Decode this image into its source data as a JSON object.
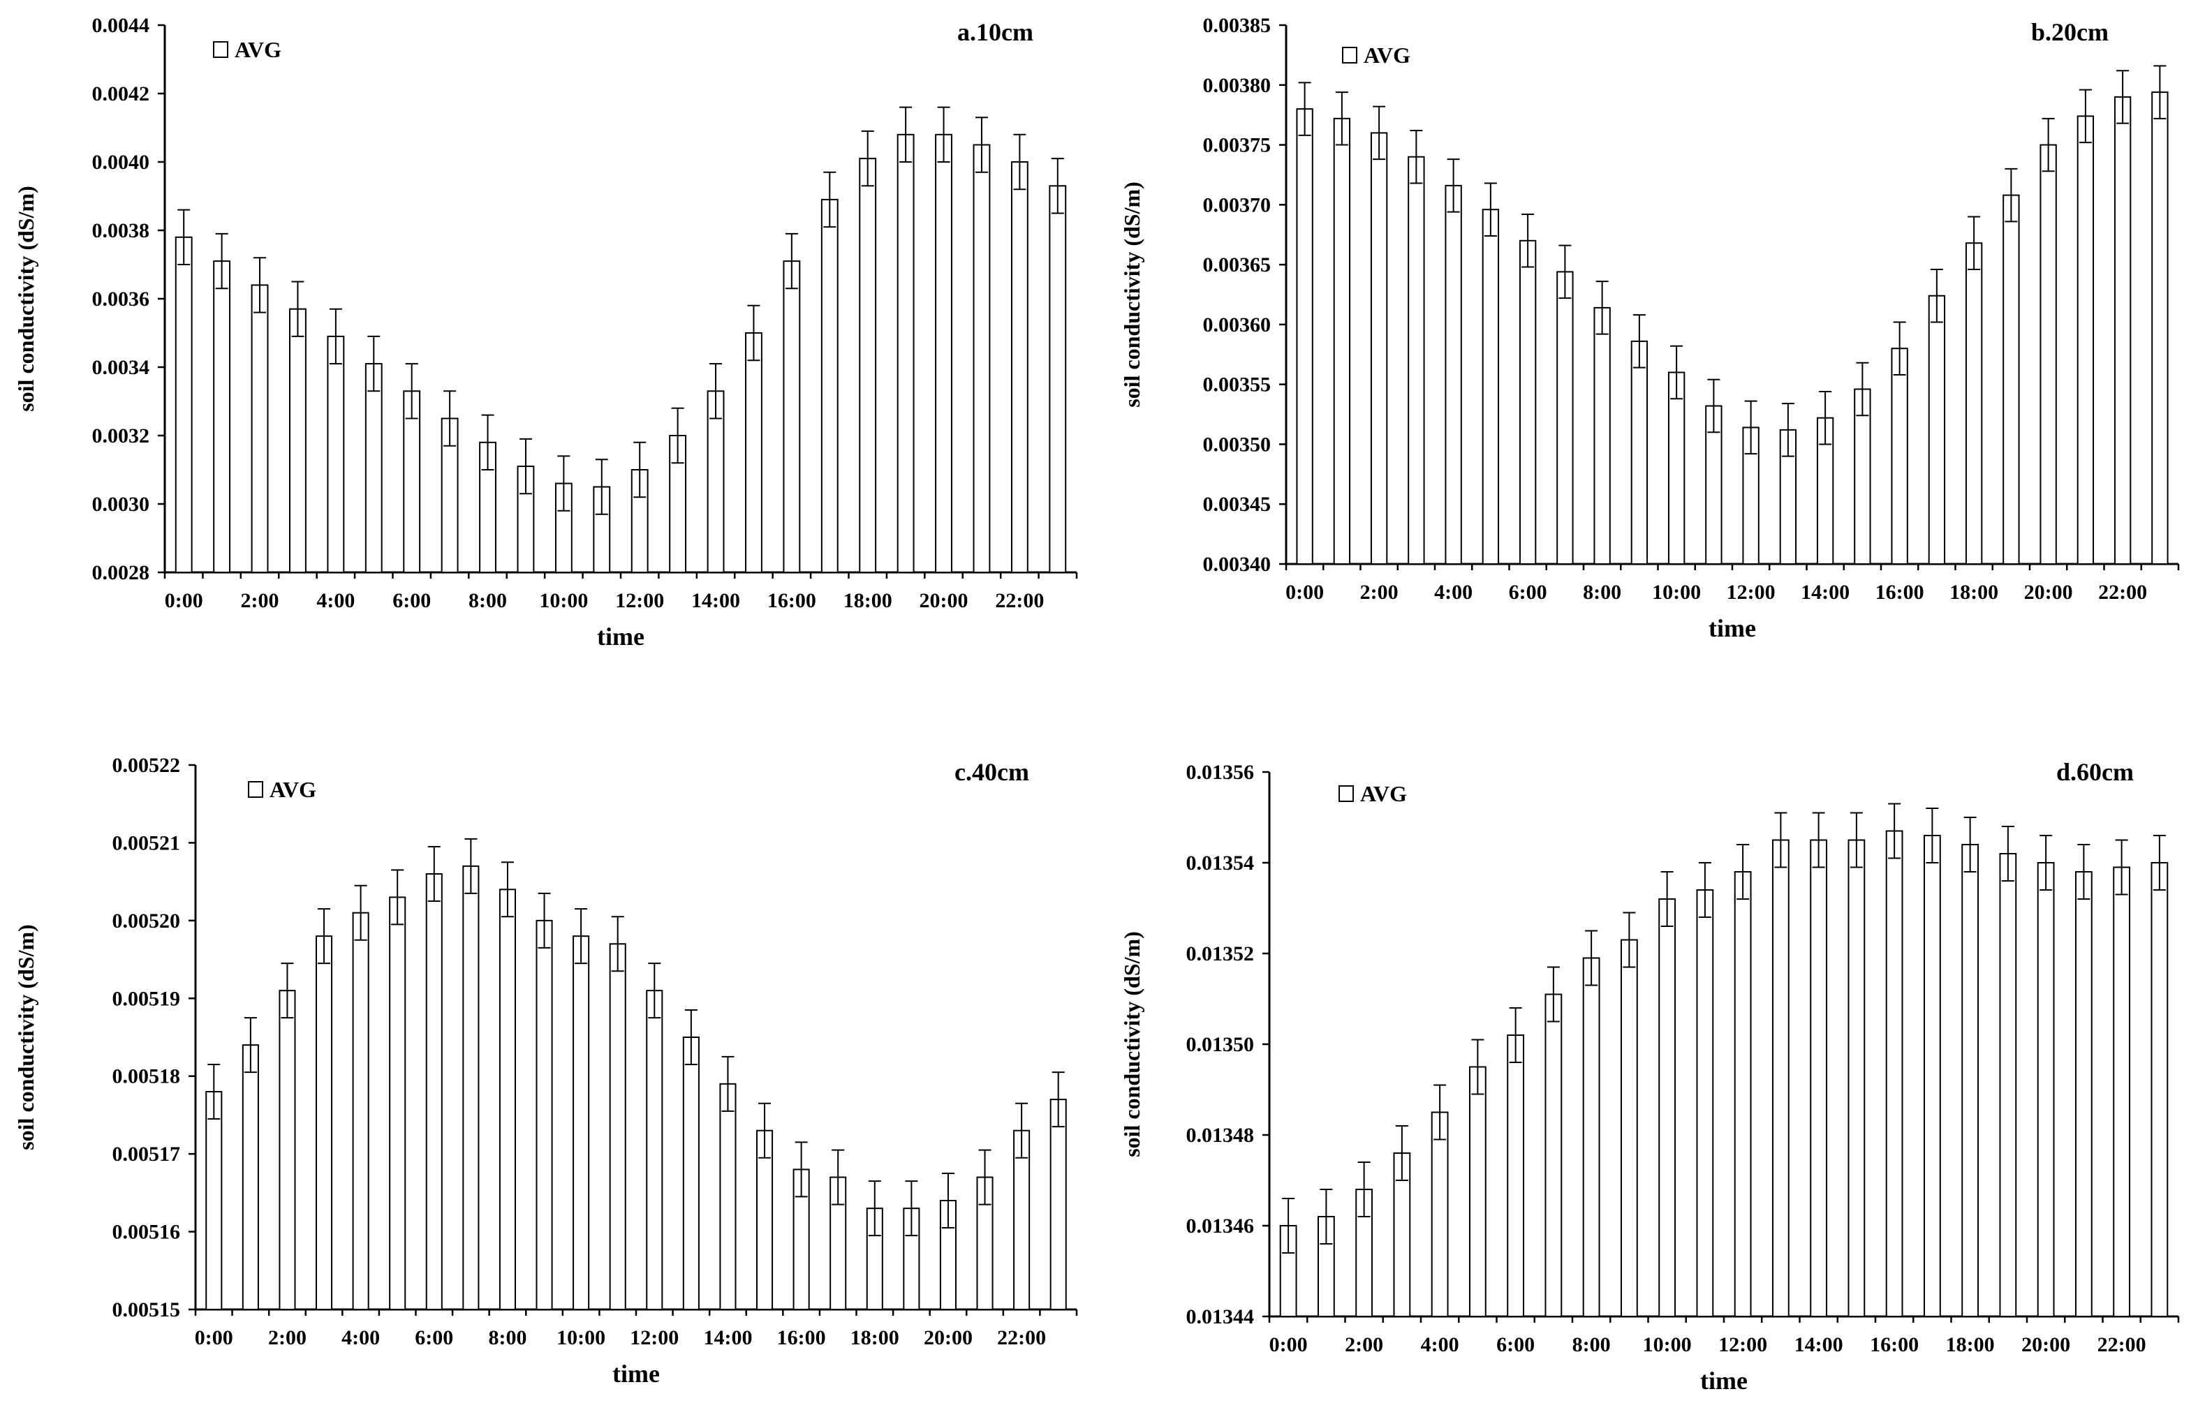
{
  "chart_data": [
    {
      "type": "bar",
      "title": "a.10cm",
      "xlabel": "time",
      "ylabel": "soil conductivity (dS/m)",
      "legend": [
        "AVG"
      ],
      "legend_position": "top-left",
      "ylim": [
        0.0028,
        0.0044
      ],
      "ytick_values": [
        0.0028,
        0.003,
        0.0032,
        0.0034,
        0.0036,
        0.0038,
        0.004,
        0.0042,
        0.0044
      ],
      "ytick_labels": [
        "0.0028",
        "0.0030",
        "0.0032",
        "0.0034",
        "0.0036",
        "0.0038",
        "0.0040",
        "0.0042",
        "0.0044"
      ],
      "xtick_labels": [
        "0:00",
        "2:00",
        "4:00",
        "6:00",
        "8:00",
        "10:00",
        "12:00",
        "14:00",
        "16:00",
        "18:00",
        "20:00",
        "22:00"
      ],
      "xtick_every": 2,
      "series": [
        {
          "name": "AVG",
          "values": [
            0.00378,
            0.00371,
            0.00364,
            0.00357,
            0.00349,
            0.00341,
            0.00333,
            0.00325,
            0.00318,
            0.00311,
            0.00306,
            0.00305,
            0.0031,
            0.0032,
            0.00333,
            0.0035,
            0.00371,
            0.00389,
            0.00401,
            0.00408,
            0.00408,
            0.00405,
            0.004,
            0.00393
          ],
          "errors": [
            8e-05,
            8e-05,
            8e-05,
            8e-05,
            8e-05,
            8e-05,
            8e-05,
            8e-05,
            8e-05,
            8e-05,
            8e-05,
            8e-05,
            8e-05,
            8e-05,
            8e-05,
            8e-05,
            8e-05,
            8e-05,
            8e-05,
            8e-05,
            8e-05,
            8e-05,
            8e-05,
            8e-05
          ]
        }
      ]
    },
    {
      "type": "bar",
      "title": "b.20cm",
      "xlabel": "time",
      "ylabel": "soil conductivity (dS/m)",
      "legend": [
        "AVG"
      ],
      "legend_position": "top-left",
      "ylim": [
        0.0034,
        0.00385
      ],
      "ytick_values": [
        0.0034,
        0.00345,
        0.0035,
        0.00355,
        0.0036,
        0.00365,
        0.0037,
        0.00375,
        0.0038,
        0.00385
      ],
      "ytick_labels": [
        "0.00340",
        "0.00345",
        "0.00350",
        "0.00355",
        "0.00360",
        "0.00365",
        "0.00370",
        "0.00375",
        "0.00380",
        "0.00385"
      ],
      "xtick_labels": [
        "0:00",
        "2:00",
        "4:00",
        "6:00",
        "8:00",
        "10:00",
        "12:00",
        "14:00",
        "16:00",
        "18:00",
        "20:00",
        "22:00"
      ],
      "xtick_every": 2,
      "series": [
        {
          "name": "AVG",
          "values": [
            0.00378,
            0.003772,
            0.00376,
            0.00374,
            0.003716,
            0.003696,
            0.00367,
            0.003644,
            0.003614,
            0.003586,
            0.00356,
            0.003532,
            0.003514,
            0.003512,
            0.003522,
            0.003546,
            0.00358,
            0.003624,
            0.003668,
            0.003708,
            0.00375,
            0.003774,
            0.00379,
            0.003794
          ],
          "errors": [
            2.2e-05,
            2.2e-05,
            2.2e-05,
            2.2e-05,
            2.2e-05,
            2.2e-05,
            2.2e-05,
            2.2e-05,
            2.2e-05,
            2.2e-05,
            2.2e-05,
            2.2e-05,
            2.2e-05,
            2.2e-05,
            2.2e-05,
            2.2e-05,
            2.2e-05,
            2.2e-05,
            2.2e-05,
            2.2e-05,
            2.2e-05,
            2.2e-05,
            2.2e-05,
            2.2e-05
          ]
        }
      ]
    },
    {
      "type": "bar",
      "title": "c.40cm",
      "xlabel": "time",
      "ylabel": "soil conductivity (dS/m)",
      "legend": [
        "AVG"
      ],
      "legend_position": "top-left",
      "ylim": [
        0.00515,
        0.00522
      ],
      "ytick_values": [
        0.00515,
        0.00516,
        0.00517,
        0.00518,
        0.00519,
        0.0052,
        0.00521,
        0.00522
      ],
      "ytick_labels": [
        "0.00515",
        "0.00516",
        "0.00517",
        "0.00518",
        "0.00519",
        "0.00520",
        "0.00521",
        "0.00522"
      ],
      "xtick_labels": [
        "0:00",
        "2:00",
        "4:00",
        "6:00",
        "8:00",
        "10:00",
        "12:00",
        "14:00",
        "16:00",
        "18:00",
        "20:00",
        "22:00"
      ],
      "xtick_every": 2,
      "series": [
        {
          "name": "AVG",
          "values": [
            0.005178,
            0.005184,
            0.005191,
            0.005198,
            0.005201,
            0.005203,
            0.005206,
            0.005207,
            0.005204,
            0.0052,
            0.005198,
            0.005197,
            0.005191,
            0.005185,
            0.005179,
            0.005173,
            0.005168,
            0.005167,
            0.005163,
            0.005163,
            0.005164,
            0.005167,
            0.005173,
            0.005177
          ],
          "errors": [
            3.5e-06,
            3.5e-06,
            3.5e-06,
            3.5e-06,
            3.5e-06,
            3.5e-06,
            3.5e-06,
            3.5e-06,
            3.5e-06,
            3.5e-06,
            3.5e-06,
            3.5e-06,
            3.5e-06,
            3.5e-06,
            3.5e-06,
            3.5e-06,
            3.5e-06,
            3.5e-06,
            3.5e-06,
            3.5e-06,
            3.5e-06,
            3.5e-06,
            3.5e-06,
            3.5e-06
          ]
        }
      ]
    },
    {
      "type": "bar",
      "title": "d.60cm",
      "xlabel": "time",
      "ylabel": "soil conductivity (dS/m)",
      "legend": [
        "AVG"
      ],
      "legend_position": "top-left",
      "ylim": [
        0.01344,
        0.01356
      ],
      "ytick_values": [
        0.01344,
        0.01346,
        0.01348,
        0.0135,
        0.01352,
        0.01354,
        0.01356
      ],
      "ytick_labels": [
        "0.01344",
        "0.01346",
        "0.01348",
        "0.01350",
        "0.01352",
        "0.01354",
        "0.01356"
      ],
      "xtick_labels": [
        "0:00",
        "2:00",
        "4:00",
        "6:00",
        "8:00",
        "10:00",
        "12:00",
        "14:00",
        "16:00",
        "18:00",
        "20:00",
        "22:00"
      ],
      "xtick_every": 2,
      "series": [
        {
          "name": "AVG",
          "values": [
            0.01346,
            0.013462,
            0.013468,
            0.013476,
            0.013485,
            0.013495,
            0.013502,
            0.013511,
            0.013519,
            0.013523,
            0.013532,
            0.013534,
            0.013538,
            0.013545,
            0.013545,
            0.013545,
            0.013547,
            0.013546,
            0.013544,
            0.013542,
            0.01354,
            0.013538,
            0.013539,
            0.01354
          ],
          "errors": [
            6e-06,
            6e-06,
            6e-06,
            6e-06,
            6e-06,
            6e-06,
            6e-06,
            6e-06,
            6e-06,
            6e-06,
            6e-06,
            6e-06,
            6e-06,
            6e-06,
            6e-06,
            6e-06,
            6e-06,
            6e-06,
            6e-06,
            6e-06,
            6e-06,
            6e-06,
            6e-06,
            6e-06
          ]
        }
      ]
    }
  ]
}
